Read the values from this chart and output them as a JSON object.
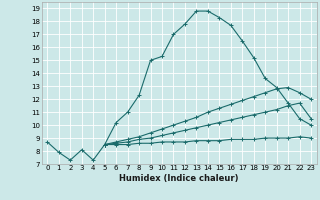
{
  "xlabel": "Humidex (Indice chaleur)",
  "bg_color": "#cce8e8",
  "line_color": "#1a6b6b",
  "grid_color": "#ffffff",
  "xlim": [
    -0.5,
    23.5
  ],
  "ylim": [
    7,
    19.5
  ],
  "xticks": [
    0,
    1,
    2,
    3,
    4,
    5,
    6,
    7,
    8,
    9,
    10,
    11,
    12,
    13,
    14,
    15,
    16,
    17,
    18,
    19,
    20,
    21,
    22,
    23
  ],
  "yticks": [
    7,
    8,
    9,
    10,
    11,
    12,
    13,
    14,
    15,
    16,
    17,
    18,
    19
  ],
  "line1_x": [
    0,
    1,
    2,
    3,
    4,
    5,
    6,
    7,
    8,
    9,
    10,
    11,
    12,
    13,
    14,
    15,
    16,
    17,
    18,
    19,
    20,
    21,
    22,
    23
  ],
  "line1_y": [
    8.7,
    7.9,
    7.3,
    8.1,
    7.3,
    8.5,
    10.2,
    11.0,
    12.3,
    15.0,
    15.3,
    17.0,
    17.8,
    18.8,
    18.8,
    18.3,
    17.7,
    16.5,
    15.2,
    13.6,
    12.9,
    11.7,
    10.5,
    10.0
  ],
  "line2_x": [
    5,
    6,
    7,
    8,
    9,
    10,
    11,
    12,
    13,
    14,
    15,
    16,
    17,
    18,
    19,
    20,
    21,
    22,
    23
  ],
  "line2_y": [
    8.5,
    8.7,
    8.9,
    9.1,
    9.4,
    9.7,
    10.0,
    10.3,
    10.6,
    11.0,
    11.3,
    11.6,
    11.9,
    12.2,
    12.5,
    12.8,
    12.9,
    12.5,
    12.0
  ],
  "line3_x": [
    5,
    6,
    7,
    8,
    9,
    10,
    11,
    12,
    13,
    14,
    15,
    16,
    17,
    18,
    19,
    20,
    21,
    22,
    23
  ],
  "line3_y": [
    8.5,
    8.6,
    8.7,
    8.9,
    9.0,
    9.2,
    9.4,
    9.6,
    9.8,
    10.0,
    10.2,
    10.4,
    10.6,
    10.8,
    11.0,
    11.2,
    11.5,
    11.7,
    10.5
  ],
  "line4_x": [
    5,
    6,
    7,
    8,
    9,
    10,
    11,
    12,
    13,
    14,
    15,
    16,
    17,
    18,
    19,
    20,
    21,
    22,
    23
  ],
  "line4_y": [
    8.5,
    8.5,
    8.5,
    8.6,
    8.6,
    8.7,
    8.7,
    8.7,
    8.8,
    8.8,
    8.8,
    8.9,
    8.9,
    8.9,
    9.0,
    9.0,
    9.0,
    9.1,
    9.0
  ],
  "tick_fontsize": 5,
  "xlabel_fontsize": 6,
  "linewidth": 0.8,
  "markersize": 3
}
